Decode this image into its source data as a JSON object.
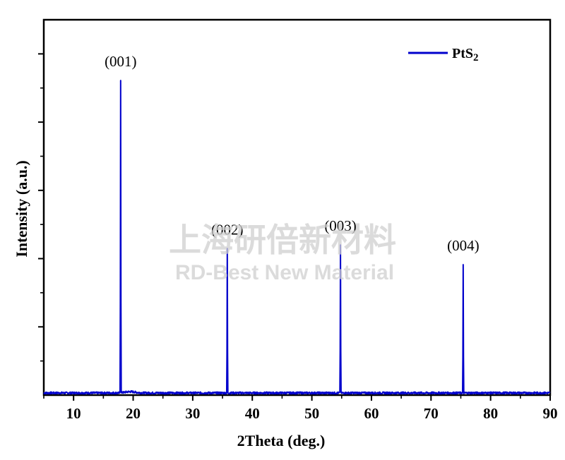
{
  "chart_data": {
    "type": "line",
    "xlabel": "2Theta (deg.)",
    "ylabel": "Intensity (a.u.)",
    "xlim": [
      5,
      90
    ],
    "ylim": [
      0,
      105
    ],
    "x_ticks": [
      10,
      20,
      30,
      40,
      50,
      60,
      70,
      80,
      90
    ],
    "x_tick_labels": [
      "10",
      "20",
      "30",
      "40",
      "50",
      "60",
      "70",
      "80",
      "90"
    ],
    "y_tick_labels_shown": false,
    "grid": false,
    "legend_position": "top-right",
    "series": [
      {
        "name": "PtS2",
        "name_main": "PtS",
        "name_sub": "2",
        "color": "#0000cc",
        "baseline": 0.6,
        "peaks": [
          {
            "x": 17.9,
            "y": 88,
            "label": "(001)"
          },
          {
            "x": 35.8,
            "y": 41,
            "label": "(002)"
          },
          {
            "x": 54.8,
            "y": 42,
            "label": "(003)"
          },
          {
            "x": 75.4,
            "y": 36.5,
            "label": "(004)"
          }
        ]
      }
    ]
  },
  "watermark": {
    "line1": "上海研倍新材料",
    "line2": "RD-Best New Material"
  }
}
